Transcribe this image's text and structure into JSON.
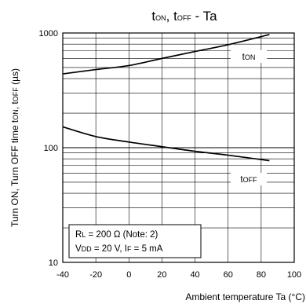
{
  "chart_data": {
    "type": "line",
    "title": {
      "p1": "t",
      "s1": "ON",
      "p2": ", t",
      "s2": "OFF",
      "p3": " - Ta"
    },
    "xlabel": "Ambient temperature Ta (°C)",
    "ylabel": {
      "p1": "Turn ON, Turn OFF time t",
      "s1": "ON",
      "p2": ", t",
      "s2": "OFF",
      "p3": " (µs)"
    },
    "xlim": [
      -40,
      100
    ],
    "ylim": [
      10,
      1000
    ],
    "yscale": "log",
    "grid": true,
    "x_ticks": [
      "-40",
      "-20",
      "0",
      "20",
      "40",
      "60",
      "80",
      "100"
    ],
    "y_ticks": [
      "10",
      "100",
      "1000"
    ],
    "series": [
      {
        "name": {
          "p1": "t",
          "s1": "ON"
        },
        "x": [
          -40,
          -20,
          0,
          20,
          40,
          60,
          85
        ],
        "y": [
          440,
          480,
          520,
          600,
          690,
          790,
          970
        ]
      },
      {
        "name": {
          "p1": "t",
          "s1": "OFF"
        },
        "x": [
          -40,
          -20,
          0,
          20,
          40,
          60,
          85
        ],
        "y": [
          152,
          125,
          112,
          102,
          93,
          86,
          77
        ]
      }
    ],
    "annotation": {
      "line1": {
        "p1": "R",
        "s1": "L",
        "p2": " = 200 Ω (Note: 2)"
      },
      "line2": {
        "p1": "V",
        "s1": "DD",
        "p2": " = 20 V, I",
        "s2": "F",
        "p3": " = 5 mA"
      }
    }
  }
}
